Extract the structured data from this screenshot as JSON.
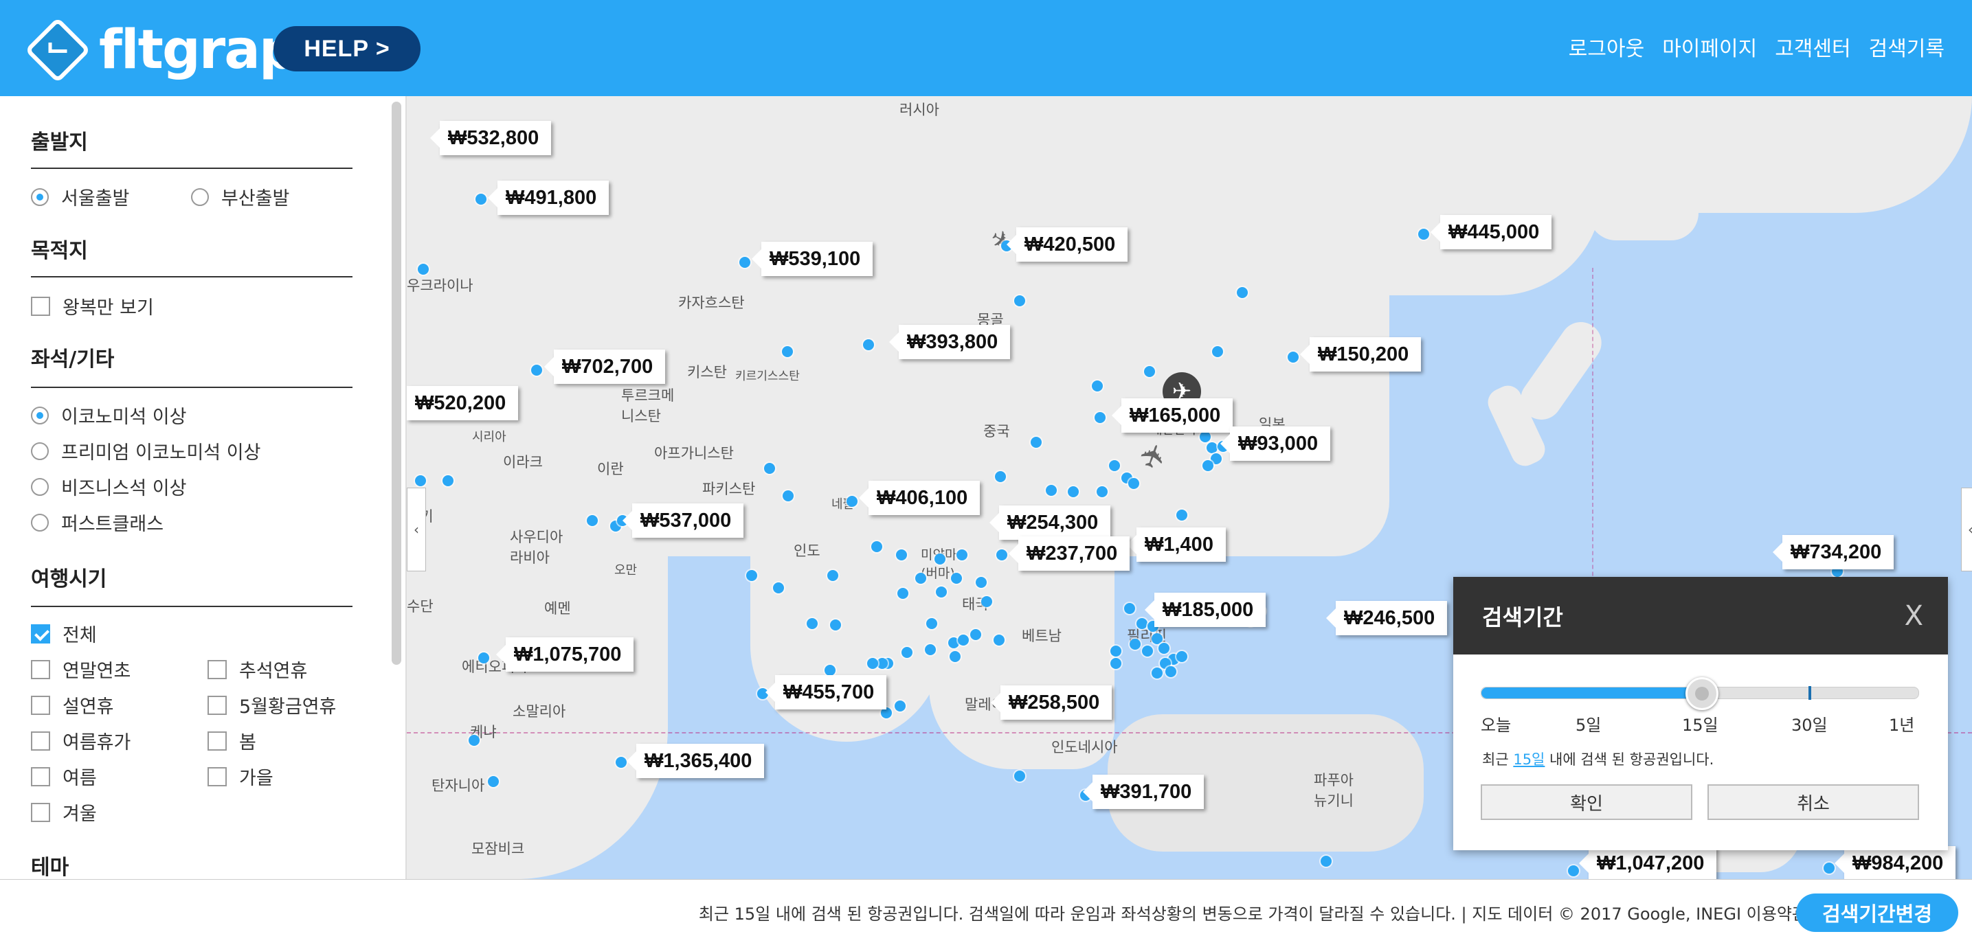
{
  "header": {
    "logo": "fltgraph",
    "help_label": "HELP >",
    "nav": [
      "로그아웃",
      "마이페이지",
      "고객센터",
      "검색기록"
    ]
  },
  "sidebar": {
    "departure": {
      "title": "출발지",
      "options": [
        {
          "label": "서울출발",
          "selected": true
        },
        {
          "label": "부산출발",
          "selected": false
        }
      ]
    },
    "destination": {
      "title": "목적지",
      "options": [
        {
          "label": "왕복만 보기",
          "checked": false
        }
      ]
    },
    "seat": {
      "title": "좌석/기타",
      "options": [
        {
          "label": "이코노미석 이상",
          "selected": true
        },
        {
          "label": "프리미엄 이코노미석 이상",
          "selected": false
        },
        {
          "label": "비즈니스석 이상",
          "selected": false
        },
        {
          "label": "퍼스트클래스",
          "selected": false
        }
      ]
    },
    "travel_time": {
      "title": "여행시기",
      "all": {
        "label": "전체",
        "checked": true
      },
      "options": [
        {
          "label": "연말연초",
          "checked": false
        },
        {
          "label": "추석연휴",
          "checked": false
        },
        {
          "label": "설연휴",
          "checked": false
        },
        {
          "label": "5월황금연휴",
          "checked": false
        },
        {
          "label": "여름휴가",
          "checked": false
        },
        {
          "label": "봄",
          "checked": false
        },
        {
          "label": "여름",
          "checked": false
        },
        {
          "label": "가을",
          "checked": false
        },
        {
          "label": "겨울",
          "checked": false
        }
      ]
    },
    "theme": {
      "title": "테마"
    }
  },
  "map": {
    "places": [
      "러시아",
      "카자흐스탄",
      "몽골",
      "키르기스스탄",
      "투르크메니스탄",
      "키스탄",
      "중국",
      "아프가니스탄",
      "이란",
      "이라크",
      "시리아",
      "파키스탄",
      "네팔",
      "인도",
      "미얀마 (버마)",
      "태국",
      "베트남",
      "필리핀",
      "사우디아라비아",
      "오만",
      "예멘",
      "수단",
      "에티오피아",
      "소말리아",
      "케냐",
      "탄자니아",
      "모잠비크",
      "말레이시아",
      "인도네시아",
      "파푸아뉴기니",
      "일본",
      "대한민국",
      "우크라이나",
      "터키"
    ],
    "prices": [
      "₩532,800",
      "₩491,800",
      "₩420,500",
      "₩445,000",
      "₩539,100",
      "₩393,800",
      "₩150,200",
      "₩702,700",
      "₩520,200",
      "₩165,000",
      "₩93,000",
      "₩406,100",
      "₩537,000",
      "₩254,300",
      "₩237,700",
      "₩1,400",
      "₩734,200",
      "₩185,000",
      "₩246,500",
      "₩1,075,700",
      "₩455,700",
      "₩258,500",
      "₩1,365,400",
      "₩391,700",
      "₩1,047,200",
      "₩984,200"
    ]
  },
  "dialog": {
    "title": "검색기간",
    "close": "X",
    "ticks": [
      "오늘",
      "5일",
      "15일",
      "30일",
      "1년"
    ],
    "slider_value": "15일",
    "slider_fraction": 0.5,
    "message_prefix": "최근 ",
    "message_link": "15일",
    "message_suffix": " 내에 검색 된 항공권입니다.",
    "confirm": "확인",
    "cancel": "취소"
  },
  "footer": {
    "notice": "최근 15일 내에 검색 된 항공권입니다. 검색일에 따라 운임과 좌석상황의 변동으로 가격이 달라질 수 있습니다.",
    "map_data": "지도 데이터 © 2017 Google, INEGI",
    "terms": "이용약관",
    "button": "검색기간변경"
  }
}
